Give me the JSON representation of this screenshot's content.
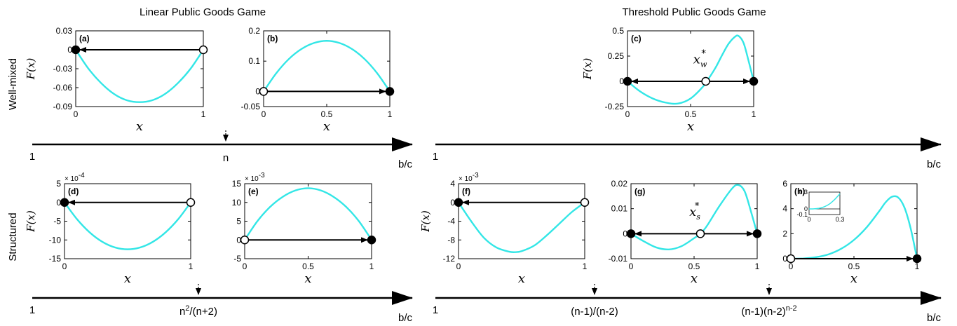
{
  "headers": {
    "linear": "Linear Public Goods Game",
    "threshold": "Threshold Public Goods Game"
  },
  "rows": {
    "well_mixed": "Well-mixed",
    "structured": "Structured"
  },
  "colors": {
    "curve": "#33e6e6",
    "axis": "#000000",
    "stable_fill": "#000000",
    "unstable_fill": "#ffffff"
  },
  "axes": [
    {
      "id": "linear-well-mixed",
      "start_label": "1",
      "end_label": "b/c",
      "markers": [
        {
          "label": "n",
          "sup": ""
        }
      ]
    },
    {
      "id": "threshold-well-mixed",
      "start_label": "1",
      "end_label": "b/c",
      "markers": []
    },
    {
      "id": "linear-structured",
      "start_label": "1",
      "end_label": "b/c",
      "markers": [
        {
          "label": "n",
          "sup": "2",
          "tail": "/(n+2)"
        }
      ]
    },
    {
      "id": "threshold-structured",
      "start_label": "1",
      "end_label": "b/c",
      "markers": [
        {
          "label": "(n-1)/(n-2)",
          "sup": "",
          "tail": ""
        },
        {
          "label": "(n-1)(n-2)",
          "sup": "n-2",
          "tail": ""
        }
      ]
    }
  ],
  "chart_data": [
    {
      "id": "a",
      "panel_label": "(a)",
      "type": "line",
      "ylabel": "F(x)",
      "xlabel": "x",
      "xlim": [
        0,
        1
      ],
      "ylim": [
        -0.09,
        0.03
      ],
      "xticks": [
        0,
        1
      ],
      "xtick_labels": [
        "0",
        "1"
      ],
      "yticks": [
        -0.09,
        -0.06,
        -0.03,
        0,
        0.03
      ],
      "ytick_labels": [
        "-0.09",
        "-0.06",
        "-0.03",
        "0",
        "0.03"
      ],
      "x": [
        0,
        0.1,
        0.2,
        0.3,
        0.4,
        0.5,
        0.6,
        0.7,
        0.8,
        0.9,
        1
      ],
      "y": [
        0,
        -0.03,
        -0.053,
        -0.07,
        -0.08,
        -0.083,
        -0.08,
        -0.07,
        -0.053,
        -0.03,
        0
      ],
      "fixed_points": [
        {
          "x": 0,
          "stable": true
        },
        {
          "x": 1,
          "stable": false
        }
      ],
      "arrows": [
        {
          "from": 1,
          "to": 0
        }
      ]
    },
    {
      "id": "b",
      "panel_label": "(b)",
      "type": "line",
      "ylabel": "",
      "xlabel": "x",
      "xlim": [
        0,
        1
      ],
      "ylim": [
        -0.05,
        0.2
      ],
      "xticks": [
        0,
        0.5,
        1
      ],
      "xtick_labels": [
        "0",
        "0.5",
        "1"
      ],
      "yticks": [
        -0.05,
        0,
        0.1,
        0.2
      ],
      "ytick_labels": [
        "-0.05",
        "0",
        "0.1",
        "0.2"
      ],
      "x": [
        0,
        0.1,
        0.2,
        0.3,
        0.4,
        0.5,
        0.6,
        0.7,
        0.8,
        0.9,
        1
      ],
      "y": [
        0,
        0.06,
        0.107,
        0.14,
        0.16,
        0.167,
        0.16,
        0.14,
        0.107,
        0.06,
        0
      ],
      "fixed_points": [
        {
          "x": 0,
          "stable": false
        },
        {
          "x": 1,
          "stable": true
        }
      ],
      "arrows": [
        {
          "from": 0,
          "to": 1
        }
      ]
    },
    {
      "id": "c",
      "panel_label": "(c)",
      "type": "line",
      "ylabel": "F(x)",
      "xlabel": "x",
      "xlim": [
        0,
        1
      ],
      "ylim": [
        -0.25,
        0.5
      ],
      "xticks": [
        0,
        0.5,
        1
      ],
      "xtick_labels": [
        "0",
        "0.5",
        "1"
      ],
      "yticks": [
        -0.25,
        0,
        0.25,
        0.5
      ],
      "ytick_labels": [
        "-0.25",
        "0",
        "0.25",
        "0.5"
      ],
      "x": [
        0,
        0.1,
        0.2,
        0.3,
        0.4,
        0.5,
        0.6,
        0.65,
        0.7,
        0.75,
        0.8,
        0.85,
        0.88,
        0.92,
        0.96,
        1
      ],
      "y": [
        0,
        -0.1,
        -0.17,
        -0.21,
        -0.22,
        -0.17,
        -0.05,
        0.04,
        0.14,
        0.26,
        0.37,
        0.44,
        0.45,
        0.38,
        0.2,
        0
      ],
      "fixed_points": [
        {
          "x": 0,
          "stable": true
        },
        {
          "x": 0.62,
          "stable": false
        },
        {
          "x": 1,
          "stable": true
        }
      ],
      "arrows": [
        {
          "from": 0.62,
          "to": 0
        },
        {
          "from": 0.62,
          "to": 1
        }
      ],
      "annotation": {
        "text": "x",
        "sub": "w",
        "sup": "*",
        "x": 0.62,
        "y": 0.15
      }
    },
    {
      "id": "d",
      "panel_label": "(d)",
      "type": "line",
      "ylabel": "F(x)",
      "xlabel": "x",
      "scale_label": "× 10",
      "scale_exp": "-4",
      "xlim": [
        0,
        1
      ],
      "ylim": [
        -15,
        5
      ],
      "xticks": [
        0,
        1
      ],
      "xtick_labels": [
        "0",
        "1"
      ],
      "yticks": [
        -15,
        -10,
        -5,
        0,
        5
      ],
      "ytick_labels": [
        "-15",
        "-10",
        "-5",
        "0",
        "5"
      ],
      "x": [
        0,
        0.1,
        0.2,
        0.3,
        0.4,
        0.5,
        0.6,
        0.7,
        0.8,
        0.9,
        1
      ],
      "y": [
        0,
        -4.5,
        -8,
        -10.5,
        -12,
        -12.5,
        -12,
        -10.5,
        -8,
        -4.5,
        0
      ],
      "fixed_points": [
        {
          "x": 0,
          "stable": true
        },
        {
          "x": 1,
          "stable": false
        }
      ],
      "arrows": [
        {
          "from": 1,
          "to": 0
        }
      ]
    },
    {
      "id": "e",
      "panel_label": "(e)",
      "type": "line",
      "ylabel": "",
      "xlabel": "x",
      "scale_label": "× 10",
      "scale_exp": "-3",
      "xlim": [
        0,
        1
      ],
      "ylim": [
        -5,
        15
      ],
      "xticks": [
        0,
        0.5,
        1
      ],
      "xtick_labels": [
        "0",
        "0.5",
        "1"
      ],
      "yticks": [
        -5,
        0,
        5,
        10,
        15
      ],
      "ytick_labels": [
        "-5",
        "0",
        "5",
        "10",
        "15"
      ],
      "x": [
        0,
        0.1,
        0.2,
        0.3,
        0.4,
        0.5,
        0.6,
        0.7,
        0.8,
        0.9,
        1
      ],
      "y": [
        0,
        5,
        8.8,
        11.5,
        13.2,
        13.8,
        13.2,
        11.5,
        8.8,
        5,
        0
      ],
      "fixed_points": [
        {
          "x": 0,
          "stable": false
        },
        {
          "x": 1,
          "stable": true
        }
      ],
      "arrows": [
        {
          "from": 0,
          "to": 1
        }
      ]
    },
    {
      "id": "f",
      "panel_label": "(f)",
      "type": "line",
      "ylabel": "F(x)",
      "xlabel": "x",
      "scale_label": "× 10",
      "scale_exp": "-3",
      "xlim": [
        0,
        1
      ],
      "ylim": [
        -12,
        4
      ],
      "xticks": [
        0,
        1
      ],
      "xtick_labels": [
        "0",
        "1"
      ],
      "yticks": [
        -12,
        -8,
        -4,
        0,
        4
      ],
      "ytick_labels": [
        "-12",
        "-8",
        "-4",
        "0",
        "4"
      ],
      "x": [
        0,
        0.1,
        0.2,
        0.3,
        0.4,
        0.45,
        0.5,
        0.6,
        0.7,
        0.8,
        0.9,
        1
      ],
      "y": [
        0,
        -4,
        -7.5,
        -9.6,
        -10.5,
        -10.6,
        -10.4,
        -9.2,
        -7,
        -4.5,
        -2,
        0
      ],
      "fixed_points": [
        {
          "x": 0,
          "stable": true
        },
        {
          "x": 1,
          "stable": false
        }
      ],
      "arrows": [
        {
          "from": 1,
          "to": 0
        }
      ]
    },
    {
      "id": "g",
      "panel_label": "(g)",
      "type": "line",
      "ylabel": "",
      "xlabel": "x",
      "xlim": [
        0,
        1
      ],
      "ylim": [
        -0.01,
        0.02
      ],
      "xticks": [
        0,
        0.5,
        1
      ],
      "xtick_labels": [
        "0",
        "0.5",
        "1"
      ],
      "yticks": [
        -0.01,
        0,
        0.01,
        0.02
      ],
      "ytick_labels": [
        "-0.01",
        "0",
        "0.01",
        "0.02"
      ],
      "x": [
        0,
        0.1,
        0.2,
        0.3,
        0.4,
        0.5,
        0.55,
        0.6,
        0.7,
        0.8,
        0.85,
        0.9,
        0.95,
        1
      ],
      "y": [
        0,
        -0.003,
        -0.0055,
        -0.0063,
        -0.005,
        -0.0018,
        0,
        0.003,
        0.011,
        0.018,
        0.0195,
        0.017,
        0.009,
        0
      ],
      "fixed_points": [
        {
          "x": 0,
          "stable": true
        },
        {
          "x": 0.55,
          "stable": false
        },
        {
          "x": 1,
          "stable": true
        }
      ],
      "arrows": [
        {
          "from": 0.55,
          "to": 0
        },
        {
          "from": 0.55,
          "to": 1
        }
      ],
      "annotation": {
        "text": "x",
        "sub": "s",
        "sup": "*",
        "x": 0.55,
        "y": 0.006
      }
    },
    {
      "id": "h",
      "panel_label": "(h)",
      "type": "line",
      "ylabel": "",
      "xlabel": "x",
      "xlim": [
        0,
        1
      ],
      "ylim": [
        0,
        6
      ],
      "xticks": [
        0,
        0.5,
        1
      ],
      "xtick_labels": [
        "0",
        "0.5",
        "1"
      ],
      "yticks": [
        0,
        2,
        4,
        6
      ],
      "ytick_labels": [
        "0",
        "2",
        "4",
        "6"
      ],
      "x": [
        0,
        0.1,
        0.2,
        0.3,
        0.4,
        0.5,
        0.6,
        0.7,
        0.75,
        0.8,
        0.85,
        0.9,
        0.95,
        1
      ],
      "y": [
        0,
        0.02,
        0.12,
        0.35,
        0.8,
        1.5,
        2.5,
        3.8,
        4.5,
        4.95,
        4.9,
        4.1,
        2.4,
        0
      ],
      "fixed_points": [
        {
          "x": 0,
          "stable": false
        },
        {
          "x": 1,
          "stable": true
        }
      ],
      "arrows": [
        {
          "from": 0,
          "to": 1
        }
      ],
      "inset": {
        "xlim": [
          0,
          0.3
        ],
        "ylim": [
          -0.1,
          0.3
        ],
        "xticks": [
          0,
          0.3
        ],
        "xtick_labels": [
          "0",
          "0.3"
        ],
        "yticks": [
          -0.1,
          0,
          0.3
        ],
        "ytick_labels": [
          "-0.1",
          "0",
          "0.3"
        ],
        "x": [
          0,
          0.05,
          0.1,
          0.15,
          0.2,
          0.25,
          0.3
        ],
        "y": [
          0,
          0.002,
          0.012,
          0.04,
          0.09,
          0.17,
          0.27
        ]
      }
    }
  ]
}
